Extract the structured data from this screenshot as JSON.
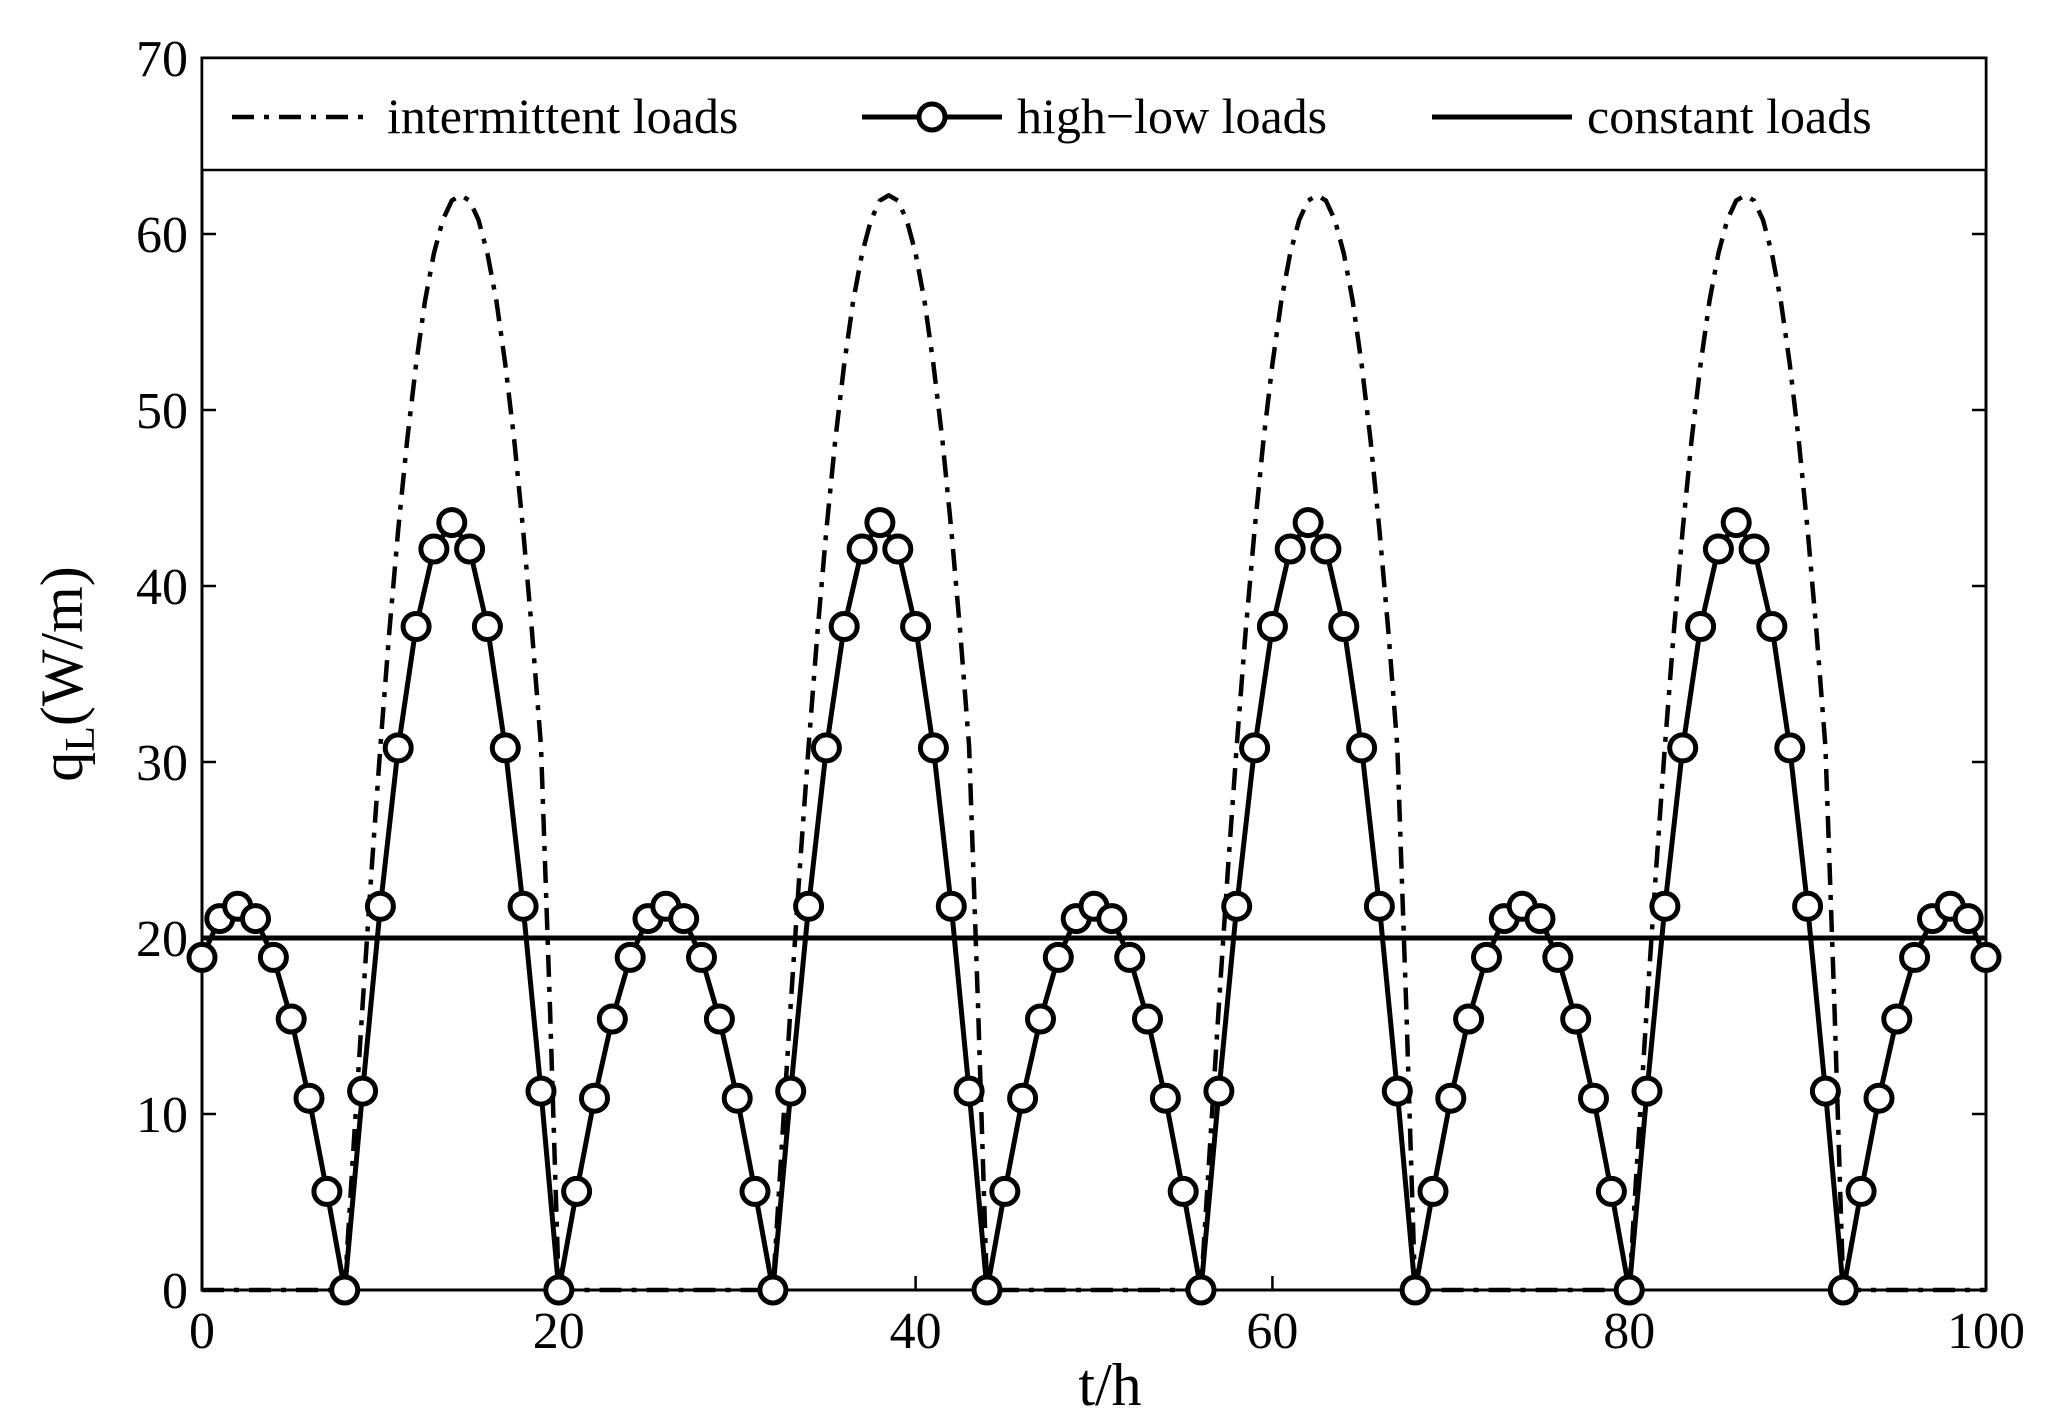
{
  "chart_data": {
    "type": "line",
    "title": "",
    "xlabel": "t/h",
    "ylabel_main": "q",
    "ylabel_sub": "L",
    "ylabel_unit": "(W/m)",
    "xlim": [
      0,
      100
    ],
    "ylim": [
      0,
      70
    ],
    "xticks": [
      0,
      20,
      40,
      60,
      80,
      100
    ],
    "yticks": [
      0,
      10,
      20,
      30,
      40,
      50,
      60,
      70
    ],
    "grid": false,
    "legend_position": "top",
    "colors": {
      "line": "#000000",
      "background": "#ffffff"
    },
    "series": [
      {
        "name": "intermittent loads",
        "style": "dash-dot",
        "x": [
          0,
          8,
          8.5,
          9,
          9.5,
          10,
          10.5,
          11,
          11.5,
          12,
          12.5,
          13,
          13.5,
          14,
          14.5,
          15,
          15.5,
          16,
          16.5,
          17,
          17.5,
          18,
          18.5,
          19,
          19.5,
          20,
          32,
          32.5,
          33,
          33.5,
          34,
          34.5,
          35,
          35.5,
          36,
          36.5,
          37,
          37.5,
          38,
          38.5,
          39,
          39.5,
          40,
          40.5,
          41,
          41.5,
          42,
          42.5,
          43,
          43.5,
          44,
          56,
          56.5,
          57,
          57.5,
          58,
          58.5,
          59,
          59.5,
          60,
          60.5,
          61,
          61.5,
          62,
          62.5,
          63,
          63.5,
          64,
          64.5,
          65,
          65.5,
          66,
          66.5,
          67,
          67.5,
          68,
          80,
          80.5,
          81,
          81.5,
          82,
          82.5,
          83,
          83.5,
          84,
          84.5,
          85,
          85.5,
          86,
          86.5,
          87,
          87.5,
          88,
          88.5,
          89,
          89.5,
          90,
          90.5,
          91,
          91.5,
          92,
          100
        ],
        "y": [
          0,
          0,
          8.2,
          16.2,
          23.8,
          30.9,
          37.4,
          43.2,
          48.3,
          52.6,
          56.2,
          58.9,
          60.8,
          61.9,
          62.2,
          61.9,
          60.8,
          58.9,
          56.2,
          52.6,
          48.3,
          43.2,
          37.4,
          30.9,
          16.2,
          0,
          0,
          8.2,
          16.2,
          23.8,
          30.9,
          37.4,
          43.2,
          48.3,
          52.6,
          56.2,
          58.9,
          60.8,
          61.9,
          62.2,
          61.9,
          60.8,
          58.9,
          56.2,
          52.6,
          48.3,
          43.2,
          37.4,
          30.9,
          16.2,
          0,
          0,
          8.2,
          16.2,
          23.8,
          30.9,
          37.4,
          43.2,
          48.3,
          52.6,
          56.2,
          58.9,
          60.8,
          61.9,
          62.2,
          61.9,
          60.8,
          58.9,
          56.2,
          52.6,
          48.3,
          43.2,
          37.4,
          30.9,
          16.2,
          0,
          0,
          8.2,
          16.2,
          23.8,
          30.9,
          37.4,
          43.2,
          48.3,
          52.6,
          56.2,
          58.9,
          60.8,
          61.9,
          62.2,
          61.9,
          60.8,
          58.9,
          56.2,
          52.6,
          48.3,
          43.2,
          37.4,
          30.9,
          16.2,
          0,
          0
        ]
      },
      {
        "name": "high−low loads",
        "style": "solid-circle-markers",
        "x": [
          0,
          1,
          2,
          3,
          4,
          5,
          6,
          7,
          8,
          9,
          10,
          11,
          12,
          13,
          14,
          15,
          16,
          17,
          18,
          19,
          20,
          21,
          22,
          23,
          24,
          25,
          26,
          27,
          28,
          29,
          30,
          31,
          32,
          33,
          34,
          35,
          36,
          37,
          38,
          39,
          40,
          41,
          42,
          43,
          44,
          45,
          46,
          47,
          48,
          49,
          50,
          51,
          52,
          53,
          54,
          55,
          56,
          57,
          58,
          59,
          60,
          61,
          62,
          63,
          64,
          65,
          66,
          67,
          68,
          69,
          70,
          71,
          72,
          73,
          74,
          75,
          76,
          77,
          78,
          79,
          80,
          81,
          82,
          83,
          84,
          85,
          86,
          87,
          88,
          89,
          90,
          91,
          92,
          93,
          94,
          95,
          96,
          97,
          98,
          99,
          100
        ],
        "y": [
          18.9,
          21.1,
          21.8,
          21.1,
          18.9,
          15.4,
          10.9,
          5.6,
          0,
          11.3,
          21.8,
          30.8,
          37.7,
          42.1,
          43.6,
          42.1,
          37.7,
          30.8,
          21.8,
          11.3,
          0,
          5.6,
          10.9,
          15.4,
          18.9,
          21.1,
          21.8,
          21.1,
          18.9,
          15.4,
          10.9,
          5.6,
          0,
          11.3,
          21.8,
          30.8,
          37.7,
          42.1,
          43.6,
          42.1,
          37.7,
          30.8,
          21.8,
          11.3,
          0,
          5.6,
          10.9,
          15.4,
          18.9,
          21.1,
          21.8,
          21.1,
          18.9,
          15.4,
          10.9,
          5.6,
          0,
          11.3,
          21.8,
          30.8,
          37.7,
          42.1,
          43.6,
          42.1,
          37.7,
          30.8,
          21.8,
          11.3,
          0,
          5.6,
          10.9,
          15.4,
          18.9,
          21.1,
          21.8,
          21.1,
          18.9,
          15.4,
          10.9,
          5.6,
          0,
          11.3,
          21.8,
          30.8,
          37.7,
          42.1,
          43.6,
          42.1,
          37.7,
          30.8,
          21.8,
          11.3,
          0,
          5.6,
          10.9,
          15.4,
          18.9,
          21.1,
          21.8,
          21.1,
          18.9
        ]
      },
      {
        "name": "constant loads",
        "style": "solid",
        "x": [
          0,
          100
        ],
        "y": [
          20,
          20
        ]
      }
    ]
  }
}
